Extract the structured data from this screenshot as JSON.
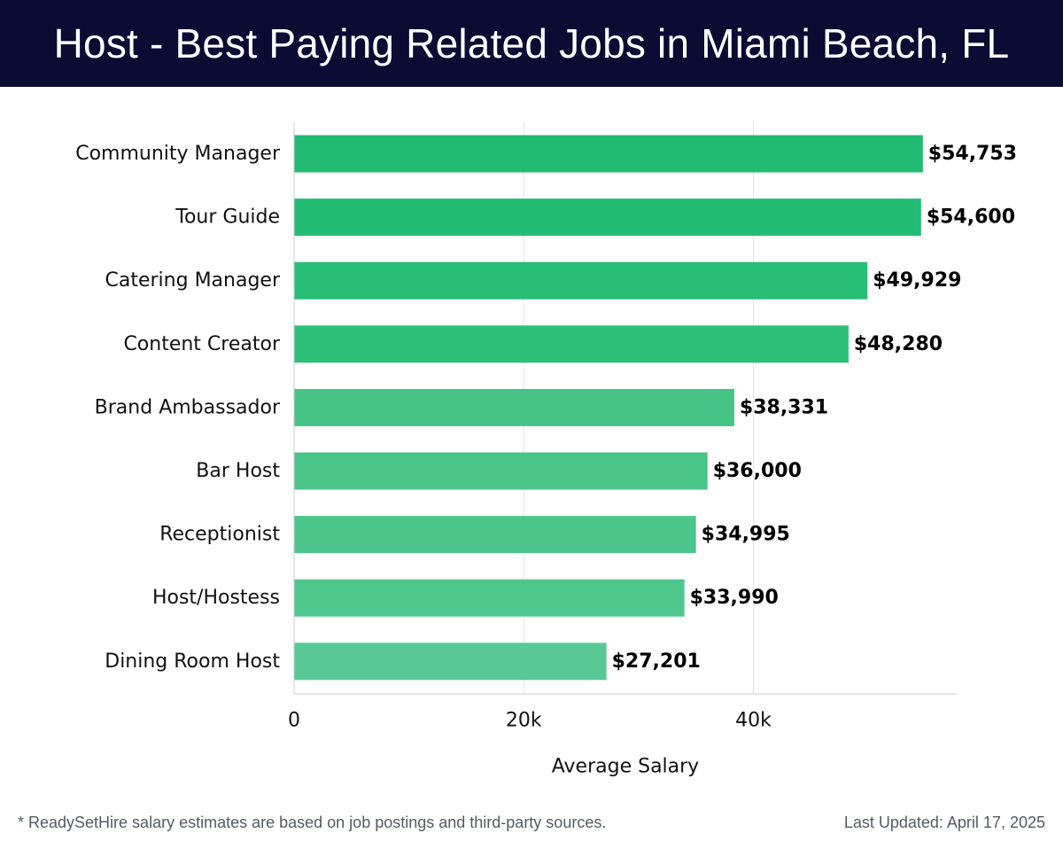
{
  "header": {
    "title": "Host - Best Paying Related Jobs in Miami Beach, FL"
  },
  "chart_data": {
    "type": "bar",
    "orientation": "horizontal",
    "categories": [
      "Community Manager",
      "Tour Guide",
      "Catering Manager",
      "Content Creator",
      "Brand Ambassador",
      "Bar Host",
      "Receptionist",
      "Host/Hostess",
      "Dining Room Host"
    ],
    "values": [
      54753,
      54600,
      49929,
      48280,
      38331,
      36000,
      34995,
      33990,
      27201
    ],
    "value_labels": [
      "$54,753",
      "$54,600",
      "$49,929",
      "$48,280",
      "$38,331",
      "$36,000",
      "$34,995",
      "$33,990",
      "$27,201"
    ],
    "xlabel": "Average Salary",
    "ylabel": "",
    "xlim": [
      0,
      57700
    ],
    "xticks": [
      0,
      20000,
      40000
    ],
    "xtick_labels": [
      "0",
      "20k",
      "40k"
    ],
    "grid": "vertical",
    "legend": "none",
    "colors": [
      "#21bb72",
      "#23bc73",
      "#27be76",
      "#2dbf78",
      "#45c485",
      "#48c587",
      "#4bc68a",
      "#4ec78c",
      "#58c995"
    ]
  },
  "footer": {
    "note": "* ReadySetHire salary estimates are based on job postings and third-party sources.",
    "updated": "Last Updated: April 17, 2025"
  }
}
